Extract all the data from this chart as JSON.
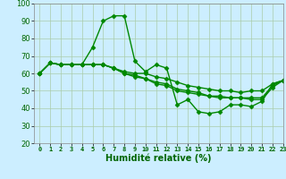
{
  "xlabel": "Humidité relative (%)",
  "background_color": "#cceeff",
  "grid_color": "#aaccaa",
  "line_color": "#008800",
  "marker": "D",
  "markersize": 2.5,
  "linewidth": 1.0,
  "xlim": [
    -0.5,
    23
  ],
  "ylim": [
    20,
    100
  ],
  "yticks": [
    20,
    30,
    40,
    50,
    60,
    70,
    80,
    90,
    100
  ],
  "xticks": [
    0,
    1,
    2,
    3,
    4,
    5,
    6,
    7,
    8,
    9,
    10,
    11,
    12,
    13,
    14,
    15,
    16,
    17,
    18,
    19,
    20,
    21,
    22,
    23
  ],
  "series": [
    [
      60,
      66,
      65,
      65,
      65,
      75,
      90,
      93,
      93,
      67,
      61,
      65,
      63,
      42,
      45,
      38,
      37,
      38,
      42,
      42,
      41,
      44,
      54,
      56
    ],
    [
      60,
      66,
      65,
      65,
      65,
      65,
      65,
      63,
      61,
      60,
      60,
      58,
      57,
      55,
      53,
      52,
      51,
      50,
      50,
      49,
      50,
      50,
      54,
      56
    ],
    [
      60,
      66,
      65,
      65,
      65,
      65,
      65,
      63,
      60,
      59,
      57,
      55,
      54,
      51,
      50,
      49,
      47,
      47,
      46,
      46,
      46,
      46,
      53,
      56
    ],
    [
      60,
      66,
      65,
      65,
      65,
      65,
      65,
      63,
      60,
      58,
      57,
      54,
      53,
      50,
      49,
      48,
      47,
      46,
      46,
      46,
      45,
      45,
      52,
      56
    ]
  ]
}
